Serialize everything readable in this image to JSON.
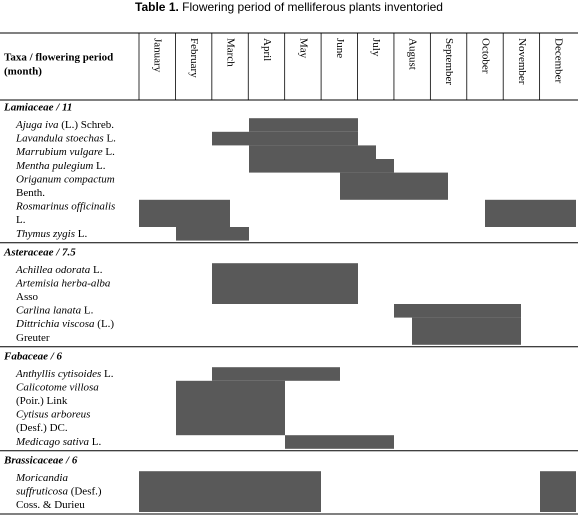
{
  "title": {
    "label": "Table 1.",
    "text": " Flowering period of melliferous plants inventoried"
  },
  "header": {
    "taxa": "Taxa / flowering period",
    "unit": "(month)",
    "months": [
      "January",
      "February",
      "March",
      "April",
      "May",
      "June",
      "July",
      "August",
      "September",
      "October",
      "November",
      "December"
    ]
  },
  "sections": [
    {
      "name": "Lamiaceae / 11",
      "rows": [
        [
          [
            {
              "text": "Ajuga iva",
              "italic": true
            },
            {
              "text": " (L.) Schreb.",
              "italic": false
            }
          ]
        ],
        [
          [
            {
              "text": "Lavandula stoechas",
              "italic": true
            },
            {
              "text": " L.",
              "italic": false
            }
          ]
        ],
        [
          [
            {
              "text": "Marrubium vulgare",
              "italic": true
            },
            {
              "text": " L.",
              "italic": false
            }
          ]
        ],
        [
          [
            {
              "text": "Mentha pulegium",
              "italic": true
            },
            {
              "text": " L.",
              "italic": false
            }
          ]
        ],
        [
          [
            {
              "text": "Origanum compactum",
              "italic": true
            }
          ],
          [
            {
              "text": "Benth.",
              "italic": false
            }
          ]
        ],
        [
          [
            {
              "text": "Rosmarinus officinalis",
              "italic": true
            }
          ],
          [
            {
              "text": "L.",
              "italic": false
            }
          ]
        ],
        [
          [
            {
              "text": "Thymus zygis",
              "italic": true
            },
            {
              "text": " L.",
              "italic": false
            }
          ]
        ]
      ]
    },
    {
      "name": "Asteraceae / 7.5",
      "rows": [
        [
          [
            {
              "text": "Achillea odorata",
              "italic": true
            },
            {
              "text": " L.",
              "italic": false
            }
          ]
        ],
        [
          [
            {
              "text": "Artemisia herba-alba",
              "italic": true
            }
          ],
          [
            {
              "text": "Asso",
              "italic": false
            }
          ]
        ],
        [
          [
            {
              "text": "Carlina lanata",
              "italic": true
            },
            {
              "text": " L.",
              "italic": false
            }
          ]
        ],
        [
          [
            {
              "text": "Dittrichia viscosa",
              "italic": true
            },
            {
              "text": " (L.)",
              "italic": false
            }
          ],
          [
            {
              "text": "Greuter",
              "italic": false
            }
          ]
        ]
      ]
    },
    {
      "name": "Fabaceae / 6",
      "rows": [
        [
          [
            {
              "text": "Anthyllis cytisoides",
              "italic": true
            },
            {
              "text": " L.",
              "italic": false
            }
          ]
        ],
        [
          [
            {
              "text": "Calicotome villosa",
              "italic": true
            }
          ],
          [
            {
              "text": "(Poir.) Link",
              "italic": false
            }
          ]
        ],
        [
          [
            {
              "text": "Cytisus arboreus",
              "italic": true
            }
          ],
          [
            {
              "text": "(Desf.) DC.",
              "italic": false
            }
          ]
        ],
        [
          [
            {
              "text": "Medicago sativa",
              "italic": true
            },
            {
              "text": " L.",
              "italic": false
            }
          ]
        ]
      ]
    },
    {
      "name": "Brassicaceae / 6",
      "rows": [
        [
          [
            {
              "text": "Moricandia",
              "italic": true
            }
          ],
          [
            {
              "text": "suffruticosa",
              "italic": true
            },
            {
              "text": " (Desf.)",
              "italic": false
            }
          ],
          [
            {
              "text": "Coss. & Durieu",
              "italic": false
            }
          ]
        ]
      ]
    }
  ]
}
